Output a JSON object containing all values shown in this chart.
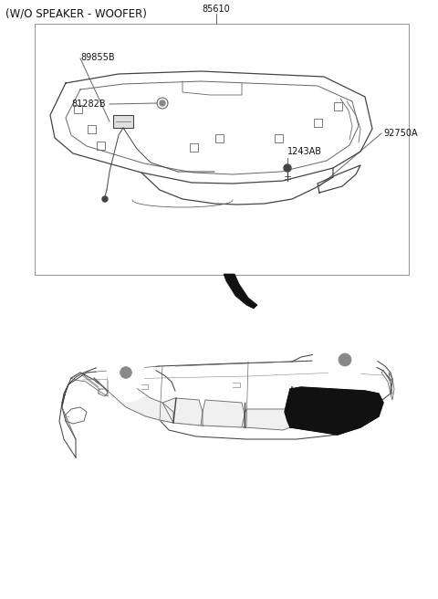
{
  "title": "(W/O SPEAKER - WOOFER)",
  "bg_color": "#ffffff",
  "line_color": "#444444",
  "line_color2": "#666666",
  "line_color3": "#888888",
  "dark_fill": "#111111",
  "gray_fill": "#cccccc",
  "label_85610": "85610",
  "label_89855B": "89855B",
  "label_81282B": "81282B",
  "label_92750A": "92750A",
  "label_1243AB": "1243AB",
  "fs_title": 8.5,
  "fs_label": 7.0,
  "fs_partnr": 7.5
}
